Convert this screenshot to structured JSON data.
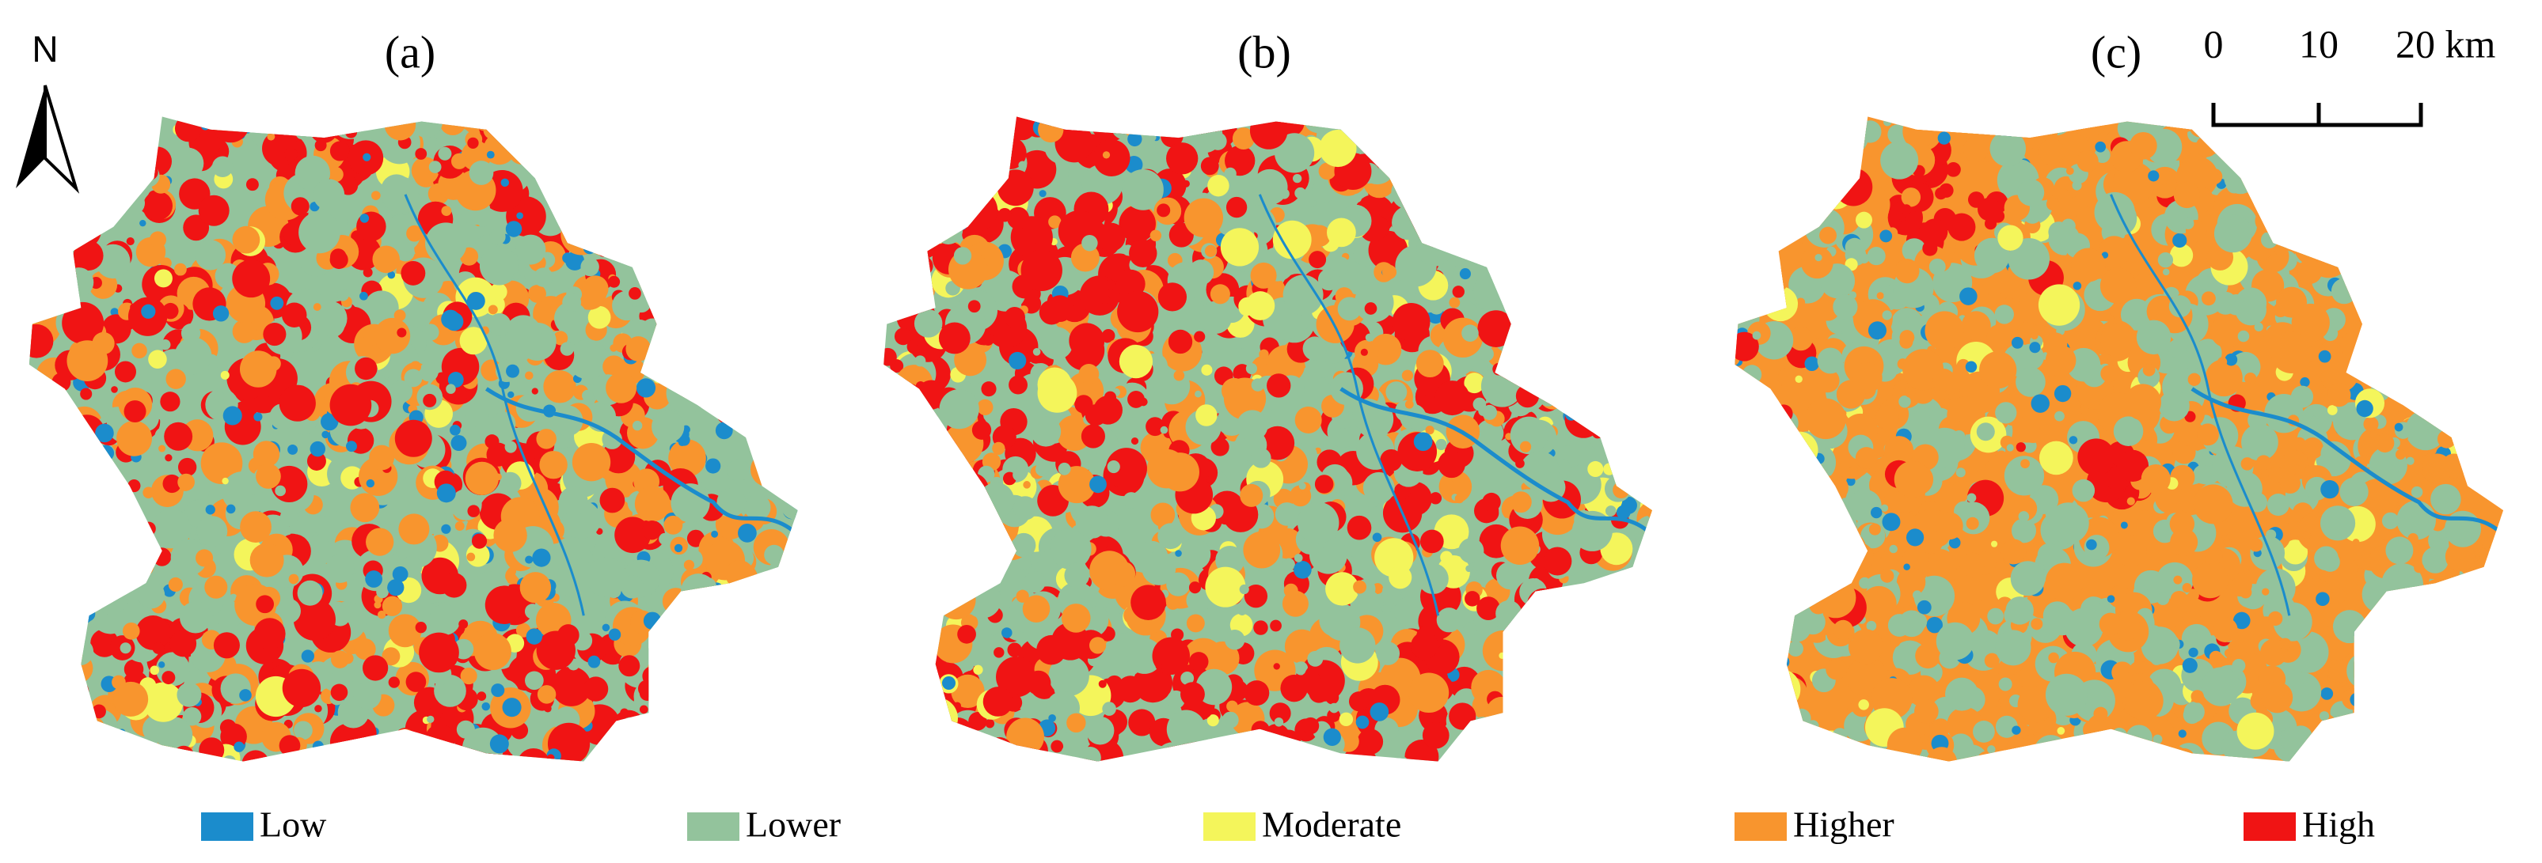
{
  "panels": [
    {
      "label": "(a)"
    },
    {
      "label": "(b)"
    },
    {
      "label": "(c)"
    }
  ],
  "north_arrow": {
    "label": "N"
  },
  "scale_bar": {
    "labels": [
      "0",
      "10",
      "20 km"
    ]
  },
  "legend": [
    {
      "label": "Low",
      "color": "#1b8ccc"
    },
    {
      "label": "Lower",
      "color": "#93c39c"
    },
    {
      "label": "Moderate",
      "color": "#f4f55b"
    },
    {
      "label": "Higher",
      "color": "#f8952e"
    },
    {
      "label": "High",
      "color": "#f01414"
    }
  ]
}
